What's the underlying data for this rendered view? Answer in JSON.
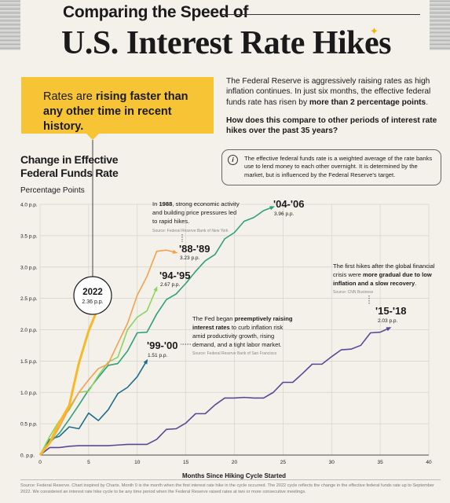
{
  "header": {
    "subtitle": "Comparing the Speed of",
    "title": "U.S. Interest Rate Hikes"
  },
  "callout": {
    "pre": "Rates are ",
    "bold": "rising faster than any other time in recent history."
  },
  "intro": {
    "p1_pre": "The Federal Reserve is aggressively raising rates as high inflation continues. In just six months, the effective federal funds rate has risen by ",
    "p1_bold": "more than 2 percentage points",
    "p1_post": ".",
    "question": "How does this compare to other periods of interest rate hikes over the past 35 years?"
  },
  "info": {
    "icon": "i",
    "text": "The effective federal funds rate is a weighted average of the rate banks use to lend money to each other overnight. It is determined by the market, but is influenced by the Federal Reserve's target."
  },
  "chart_title": "Change in Effective Federal Funds Rate",
  "footer": "Source: Federal Reserve. Chart inspired by Charts. Month 0 is the month when the first interest rate hike in the cycle occurred. The 2022 cycle reflects the change in the effective federal funds rate up to September 2022. We considered an interest rate hike cycle to be any time period when the Federal Reserve raised rates at two or more consecutive meetings.",
  "annotations": {
    "a1988": {
      "pre": "In ",
      "bold": "1988",
      "rest1": ", strong economic activity",
      "line2": "and building price pressures led",
      "line3": "to rapid hikes.",
      "source": "Source: Federal Reserve Bank of New York"
    },
    "a1999": {
      "line1": "The Fed began ",
      "bold1": "preemptively raising",
      "bold2": "interest rates",
      "line2b": " to curb inflation risk",
      "line3": "amid productivity growth, rising",
      "line4": "demand, and a tight labor market.",
      "source": "Source: Federal Reserve Bank of San Francisco"
    },
    "a2015": {
      "line1": "The first hikes after the global financial",
      "line2_pre": "crisis were ",
      "line2_bold": "more gradual due to low",
      "line3_bold": "inflation and a slow recovery",
      "line3_post": ".",
      "source": "Source: CNN Business"
    }
  },
  "colors": {
    "c2022": "#f7b928",
    "c1988": "#f5a04e",
    "c1994": "#8dd35f",
    "c2004": "#2ea17a",
    "c1999": "#1f6e8c",
    "c2015": "#5a4896",
    "grid": "#d6d3cb",
    "callout": "#f7c436"
  },
  "chart_data": {
    "type": "line",
    "title": "Change in Effective Federal Funds Rate",
    "ylabel": "Percentage Points",
    "xlabel": "Months Since Hiking Cycle Started",
    "xlim": [
      0,
      40
    ],
    "ylim": [
      0,
      4.0
    ],
    "x_ticks": [
      0,
      5,
      10,
      15,
      20,
      25,
      30,
      35,
      40
    ],
    "y_ticks": [
      0,
      0.5,
      1.0,
      1.5,
      2.0,
      2.5,
      3.0,
      3.5,
      4.0
    ],
    "y_tick_labels": [
      "0. p.p.",
      "0.5 p.p.",
      "1.0 p.p.",
      "1.5 p.p.",
      "2.0 p.p.",
      "2.5 p.p.",
      "3.0 p.p.",
      "3.5 p.p.",
      "4.0 p.p."
    ],
    "x_tick_labels": [
      "0",
      "5",
      "10",
      "15",
      "20",
      "25",
      "30",
      "35",
      "40"
    ],
    "grid": true,
    "series": [
      {
        "name": "2022",
        "end_value": "2.36 p.p.",
        "x": [
          0,
          1,
          2,
          3,
          4,
          5,
          6
        ],
        "y": [
          0,
          0.2,
          0.52,
          0.79,
          1.47,
          1.98,
          2.36
        ]
      },
      {
        "name": "'88-'89",
        "end_value": "3.23 p.p.",
        "x": [
          0,
          1,
          2,
          3,
          4,
          5,
          6,
          7,
          8,
          9,
          10,
          11,
          12,
          13,
          14
        ],
        "y": [
          0,
          0.18,
          0.45,
          0.75,
          1.0,
          1.2,
          1.38,
          1.45,
          1.78,
          2.1,
          2.55,
          2.85,
          3.25,
          3.27,
          3.23
        ]
      },
      {
        "name": "'94-'95",
        "end_value": "2.67 p.p.",
        "x": [
          0,
          1,
          2,
          3,
          4,
          5,
          6,
          7,
          8,
          9,
          10,
          11,
          12
        ],
        "y": [
          0,
          0.3,
          0.55,
          0.72,
          1.0,
          1.02,
          1.27,
          1.48,
          1.56,
          2.0,
          2.2,
          2.3,
          2.67
        ]
      },
      {
        "name": "'04-'06",
        "end_value": "3.96 p.p.",
        "x": [
          0,
          1,
          2,
          3,
          4,
          5,
          6,
          7,
          8,
          9,
          10,
          11,
          12,
          13,
          14,
          15,
          16,
          17,
          18,
          19,
          20,
          21,
          22,
          23,
          24
        ],
        "y": [
          0,
          0.2,
          0.35,
          0.57,
          0.8,
          1.04,
          1.24,
          1.43,
          1.46,
          1.66,
          1.95,
          1.96,
          2.25,
          2.48,
          2.57,
          2.74,
          2.93,
          3.1,
          3.2,
          3.45,
          3.55,
          3.73,
          3.79,
          3.9,
          3.96
        ]
      },
      {
        "name": "'99-'00",
        "end_value": "1.51 p.p.",
        "x": [
          0,
          1,
          2,
          3,
          4,
          5,
          6,
          7,
          8,
          9,
          10,
          11
        ],
        "y": [
          0,
          0.25,
          0.3,
          0.45,
          0.42,
          0.67,
          0.55,
          0.72,
          0.98,
          1.08,
          1.25,
          1.51
        ]
      },
      {
        "name": "'15-'18",
        "end_value": "2.03 p.p.",
        "x": [
          0,
          1,
          2,
          3,
          4,
          5,
          6,
          7,
          8,
          9,
          10,
          11,
          12,
          13,
          14,
          15,
          16,
          17,
          18,
          19,
          20,
          21,
          22,
          23,
          24,
          25,
          26,
          27,
          28,
          29,
          30,
          31,
          32,
          33,
          34,
          35,
          36
        ],
        "y": [
          0,
          0.12,
          0.12,
          0.14,
          0.15,
          0.15,
          0.15,
          0.15,
          0.16,
          0.17,
          0.17,
          0.17,
          0.25,
          0.41,
          0.42,
          0.51,
          0.66,
          0.66,
          0.8,
          0.91,
          0.91,
          0.92,
          0.91,
          0.91,
          1.0,
          1.16,
          1.16,
          1.3,
          1.45,
          1.45,
          1.57,
          1.68,
          1.69,
          1.75,
          1.95,
          1.96,
          2.03
        ]
      }
    ]
  }
}
